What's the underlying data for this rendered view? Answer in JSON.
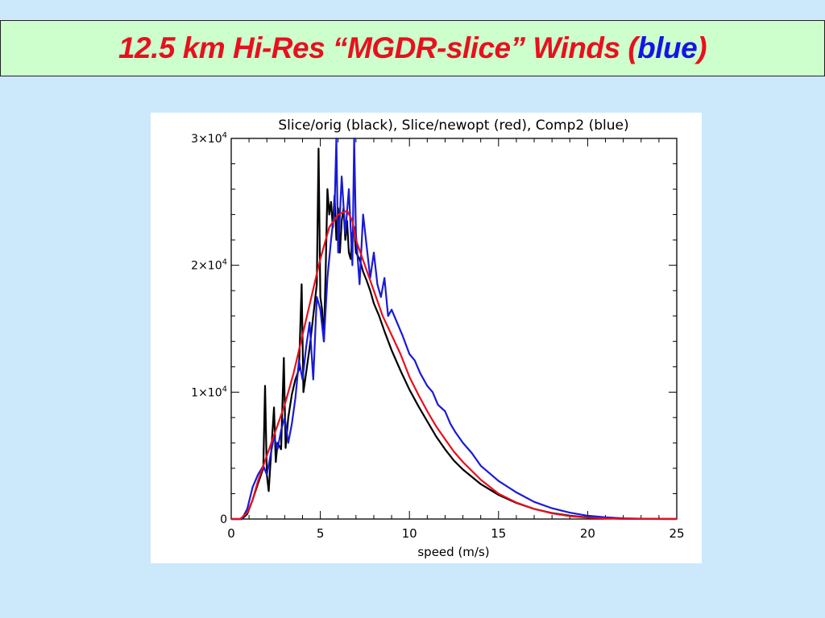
{
  "slide": {
    "title_main": "12.5 km Hi-Res “MGDR-slice” Winds ",
    "title_open": "(",
    "title_blue": "blue",
    "title_close": ")",
    "colors": {
      "background": "#cce9fb",
      "title_box": "#ccffcc",
      "title_red": "#e8101e",
      "title_blue": "#1414e6"
    }
  },
  "chart_data": {
    "type": "line",
    "title": "Slice/orig (black), Slice/newopt (red), Comp2 (blue)",
    "xlabel": "speed (m/s)",
    "ylabel": "",
    "xlim": [
      0,
      25
    ],
    "ylim": [
      0,
      30000
    ],
    "x_ticks": [
      0,
      5,
      10,
      15,
      20,
      25
    ],
    "x_tick_labels": [
      "0",
      "5",
      "10",
      "15",
      "20",
      "25"
    ],
    "y_ticks": [
      0,
      10000,
      20000,
      30000
    ],
    "y_tick_labels": [
      {
        "base": "0",
        "exp": ""
      },
      {
        "base": "1×10",
        "exp": "4"
      },
      {
        "base": "2×10",
        "exp": "4"
      },
      {
        "base": "3×10",
        "exp": "4"
      }
    ],
    "grid": false,
    "series": [
      {
        "color": "#000000",
        "x": [
          0,
          0.3,
          0.6,
          0.9,
          1.2,
          1.5,
          1.8,
          1.9,
          2.0,
          2.1,
          2.25,
          2.4,
          2.5,
          2.6,
          2.8,
          2.95,
          3.05,
          3.2,
          3.4,
          3.6,
          3.8,
          3.95,
          4.05,
          4.2,
          4.4,
          4.6,
          4.8,
          4.9,
          5.0,
          5.1,
          5.2,
          5.3,
          5.4,
          5.5,
          5.6,
          5.7,
          5.8,
          5.9,
          6.0,
          6.1,
          6.2,
          6.3,
          6.4,
          6.5,
          6.6,
          6.7,
          6.8,
          6.9,
          7.0,
          7.2,
          7.4,
          7.6,
          7.8,
          8.0,
          8.3,
          8.6,
          9.0,
          9.5,
          10.0,
          10.5,
          11.0,
          11.5,
          12.0,
          12.5,
          13.0,
          14.0,
          15.0,
          16.0,
          17.0,
          18.0,
          19.0,
          20.0,
          21.0,
          22.0,
          23.0,
          24.0,
          25.0
        ],
        "y": [
          0,
          0,
          0,
          400,
          1500,
          2800,
          4000,
          10500,
          3500,
          2200,
          5500,
          8800,
          4500,
          6000,
          5500,
          12700,
          5600,
          8000,
          9800,
          11000,
          11800,
          18500,
          10000,
          11500,
          13500,
          16000,
          18500,
          29200,
          17500,
          16500,
          14000,
          19500,
          26000,
          24000,
          25000,
          23000,
          25500,
          22000,
          24500,
          21000,
          23500,
          24500,
          22000,
          23500,
          21000,
          20500,
          22500,
          23000,
          21000,
          20500,
          19500,
          18800,
          18000,
          17000,
          16000,
          14800,
          13300,
          11700,
          10200,
          8900,
          7700,
          6500,
          5500,
          4600,
          3900,
          2750,
          1900,
          1270,
          800,
          470,
          260,
          130,
          60,
          25,
          10,
          5,
          2
        ]
      },
      {
        "color": "#e8101e",
        "x": [
          0,
          0.5,
          0.9,
          1.2,
          1.5,
          2.0,
          2.5,
          3.0,
          3.5,
          4.0,
          4.5,
          5.0,
          5.5,
          6.0,
          6.5,
          6.8,
          7.0,
          7.5,
          8.0,
          8.5,
          9.0,
          9.5,
          10.0,
          10.5,
          11.0,
          11.5,
          12.0,
          12.5,
          13.0,
          13.5,
          14.0,
          15.0,
          16.0,
          17.0,
          18.0,
          19.0,
          20.0,
          21.0,
          22.0,
          23.0,
          24.0,
          25.0
        ],
        "y": [
          0,
          0,
          500,
          1500,
          3000,
          5000,
          7000,
          9000,
          11500,
          14500,
          17500,
          20500,
          23000,
          24000,
          24300,
          23500,
          22000,
          20000,
          18000,
          16000,
          14500,
          13000,
          11200,
          9800,
          8500,
          7300,
          6300,
          5300,
          4500,
          3800,
          3100,
          2000,
          1300,
          800,
          450,
          230,
          110,
          50,
          20,
          8,
          3,
          1
        ]
      },
      {
        "color": "#1a1ad6",
        "x": [
          0,
          0.3,
          0.6,
          0.9,
          1.2,
          1.5,
          1.8,
          2.0,
          2.2,
          2.4,
          2.6,
          2.8,
          3.0,
          3.2,
          3.4,
          3.6,
          3.8,
          4.0,
          4.2,
          4.4,
          4.6,
          4.8,
          5.0,
          5.2,
          5.4,
          5.6,
          5.8,
          5.9,
          6.0,
          6.2,
          6.4,
          6.6,
          6.8,
          6.9,
          7.0,
          7.2,
          7.4,
          7.6,
          7.8,
          8.0,
          8.2,
          8.4,
          8.6,
          8.8,
          9.0,
          9.3,
          9.6,
          10.0,
          10.3,
          10.6,
          11.0,
          11.3,
          11.6,
          12.0,
          12.3,
          12.6,
          13.0,
          13.5,
          14.0,
          14.5,
          15.0,
          16.0,
          17.0,
          18.0,
          19.0,
          20.0,
          21.0,
          22.0,
          23.0,
          24.0,
          25.0
        ],
        "y": [
          0,
          0,
          0,
          800,
          2500,
          3500,
          4200,
          3500,
          5000,
          6500,
          5500,
          7000,
          8000,
          6000,
          7500,
          9500,
          12500,
          11000,
          13500,
          15500,
          11000,
          17500,
          16500,
          14000,
          19000,
          22000,
          24500,
          30000,
          21000,
          27000,
          22500,
          26000,
          20000,
          31000,
          22500,
          18500,
          24000,
          21500,
          19000,
          21000,
          18500,
          17500,
          19000,
          16000,
          16500,
          15500,
          14500,
          13000,
          12500,
          11500,
          10500,
          10000,
          9000,
          8500,
          7500,
          6800,
          6000,
          5200,
          4200,
          3600,
          3000,
          2100,
          1350,
          850,
          500,
          260,
          140,
          60,
          25,
          10,
          4
        ]
      }
    ]
  }
}
